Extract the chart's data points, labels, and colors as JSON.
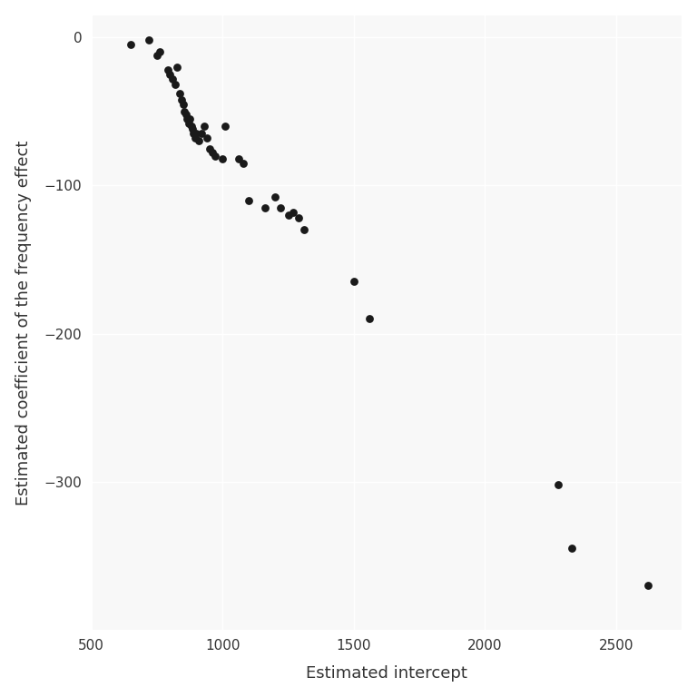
{
  "x": [
    650,
    720,
    750,
    760,
    790,
    800,
    810,
    820,
    825,
    835,
    845,
    850,
    855,
    860,
    865,
    870,
    875,
    880,
    885,
    890,
    895,
    900,
    910,
    920,
    930,
    940,
    950,
    960,
    970,
    1000,
    1010,
    1060,
    1080,
    1100,
    1160,
    1200,
    1220,
    1250,
    1270,
    1290,
    1310,
    1500,
    1560,
    2280,
    2330,
    2620
  ],
  "y": [
    -5,
    -2,
    -12,
    -10,
    -22,
    -25,
    -28,
    -32,
    -20,
    -38,
    -42,
    -45,
    -50,
    -52,
    -55,
    -58,
    -55,
    -60,
    -62,
    -65,
    -68,
    -65,
    -70,
    -65,
    -60,
    -68,
    -75,
    -78,
    -80,
    -82,
    -60,
    -82,
    -85,
    -110,
    -115,
    -108,
    -115,
    -120,
    -118,
    -122,
    -130,
    -165,
    -190,
    -302,
    -345,
    -370
  ],
  "title": "",
  "xlabel": "Estimated intercept",
  "ylabel": "Estimated coefficient of the frequency effect",
  "xlim": [
    500,
    2750
  ],
  "ylim": [
    -400,
    15
  ],
  "xticks": [
    500,
    1000,
    1500,
    2000,
    2500
  ],
  "yticks": [
    0,
    -100,
    -200,
    -300
  ],
  "point_color": "#1a1a1a",
  "point_size": 40,
  "background_color": "#ffffff",
  "grid_color": "#d9d9d9",
  "panel_background": "#f8f8f8"
}
